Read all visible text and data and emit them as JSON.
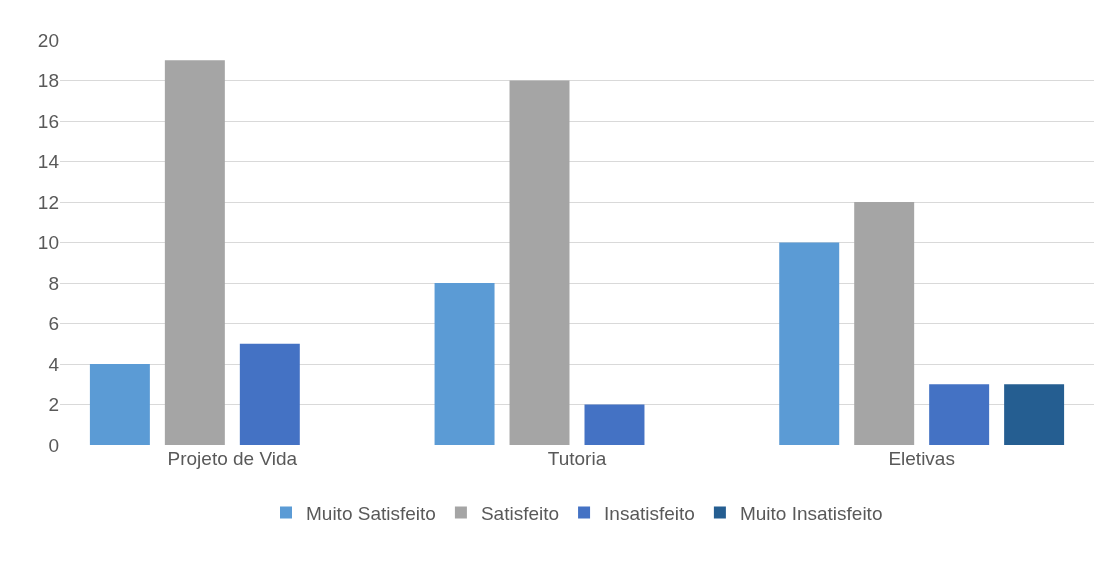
{
  "chart_data": {
    "type": "bar",
    "categories": [
      "Projeto de Vida",
      "Tutoria",
      "Eletivas"
    ],
    "series": [
      {
        "name": "Muito Satisfeito",
        "color": "#5b9bd5",
        "values": [
          4,
          8,
          10
        ]
      },
      {
        "name": "Satisfeito",
        "color": "#a5a5a5",
        "values": [
          19,
          18,
          12
        ]
      },
      {
        "name": "Insatisfeito",
        "color": "#4472c4",
        "values": [
          5,
          2,
          3
        ]
      },
      {
        "name": "Muito Insatisfeito",
        "color": "#255e91",
        "values": [
          0,
          0,
          3
        ]
      }
    ],
    "ylim": [
      0,
      20
    ],
    "yticks": [
      0,
      2,
      4,
      6,
      8,
      10,
      12,
      14,
      16,
      18,
      20
    ],
    "grid": "y",
    "legend": "bottom"
  }
}
